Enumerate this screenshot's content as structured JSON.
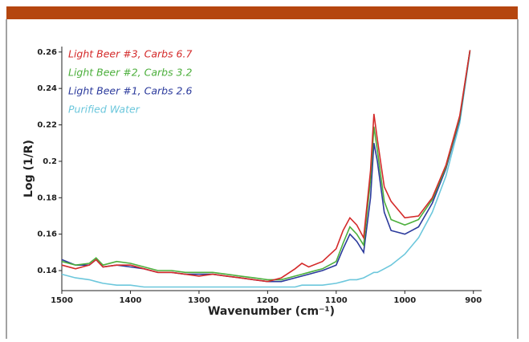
{
  "chart_data": {
    "type": "line",
    "y_label": "Log (1/R)",
    "x_label": "Wavenumber (cm⁻¹)",
    "x": [
      1500,
      1480,
      1460,
      1450,
      1440,
      1420,
      1400,
      1380,
      1360,
      1340,
      1320,
      1300,
      1280,
      1260,
      1240,
      1220,
      1200,
      1180,
      1160,
      1150,
      1140,
      1120,
      1100,
      1090,
      1080,
      1070,
      1060,
      1050,
      1045,
      1040,
      1030,
      1020,
      1000,
      980,
      960,
      940,
      920,
      905
    ],
    "series": [
      {
        "name": "Light Beer #3, Carbs 6.7",
        "color": "#d42a2a",
        "values": [
          0.143,
          0.141,
          0.143,
          0.146,
          0.142,
          0.143,
          0.143,
          0.141,
          0.139,
          0.139,
          0.138,
          0.137,
          0.138,
          0.137,
          0.136,
          0.135,
          0.134,
          0.136,
          0.141,
          0.144,
          0.142,
          0.145,
          0.152,
          0.162,
          0.169,
          0.165,
          0.158,
          0.195,
          0.226,
          0.212,
          0.186,
          0.178,
          0.169,
          0.17,
          0.18,
          0.198,
          0.225,
          0.261
        ]
      },
      {
        "name": "Light Beer #2, Carbs 3.2",
        "color": "#4caf3c",
        "values": [
          0.145,
          0.143,
          0.144,
          0.147,
          0.143,
          0.145,
          0.144,
          0.142,
          0.14,
          0.14,
          0.139,
          0.139,
          0.139,
          0.138,
          0.137,
          0.136,
          0.135,
          0.135,
          0.137,
          0.138,
          0.139,
          0.141,
          0.145,
          0.155,
          0.164,
          0.16,
          0.154,
          0.19,
          0.219,
          0.206,
          0.178,
          0.168,
          0.165,
          0.168,
          0.179,
          0.197,
          0.224,
          0.261
        ]
      },
      {
        "name": "Light Beer #1, Carbs 2.6",
        "color": "#2b3a9c",
        "values": [
          0.146,
          0.143,
          0.143,
          0.146,
          0.142,
          0.143,
          0.142,
          0.141,
          0.139,
          0.139,
          0.138,
          0.138,
          0.138,
          0.137,
          0.136,
          0.135,
          0.134,
          0.134,
          0.136,
          0.137,
          0.138,
          0.14,
          0.143,
          0.152,
          0.16,
          0.156,
          0.15,
          0.18,
          0.21,
          0.2,
          0.172,
          0.162,
          0.16,
          0.164,
          0.177,
          0.196,
          0.223,
          0.261
        ]
      },
      {
        "name": "Purified Water",
        "color": "#6cc7dc",
        "values": [
          0.138,
          0.136,
          0.135,
          0.134,
          0.133,
          0.132,
          0.132,
          0.131,
          0.131,
          0.131,
          0.131,
          0.131,
          0.131,
          0.131,
          0.131,
          0.131,
          0.131,
          0.131,
          0.131,
          0.132,
          0.132,
          0.132,
          0.133,
          0.134,
          0.135,
          0.135,
          0.136,
          0.138,
          0.139,
          0.139,
          0.141,
          0.143,
          0.149,
          0.158,
          0.172,
          0.192,
          0.221,
          0.26
        ]
      }
    ],
    "xlim": [
      1500,
      888
    ],
    "ylim": [
      0.129,
      0.263
    ],
    "xticks": [
      1500,
      1400,
      1300,
      1200,
      1100,
      1000,
      900
    ],
    "yticks": [
      0.14,
      0.16,
      0.18,
      0.2,
      0.22,
      0.24,
      0.26
    ],
    "grid": false
  }
}
